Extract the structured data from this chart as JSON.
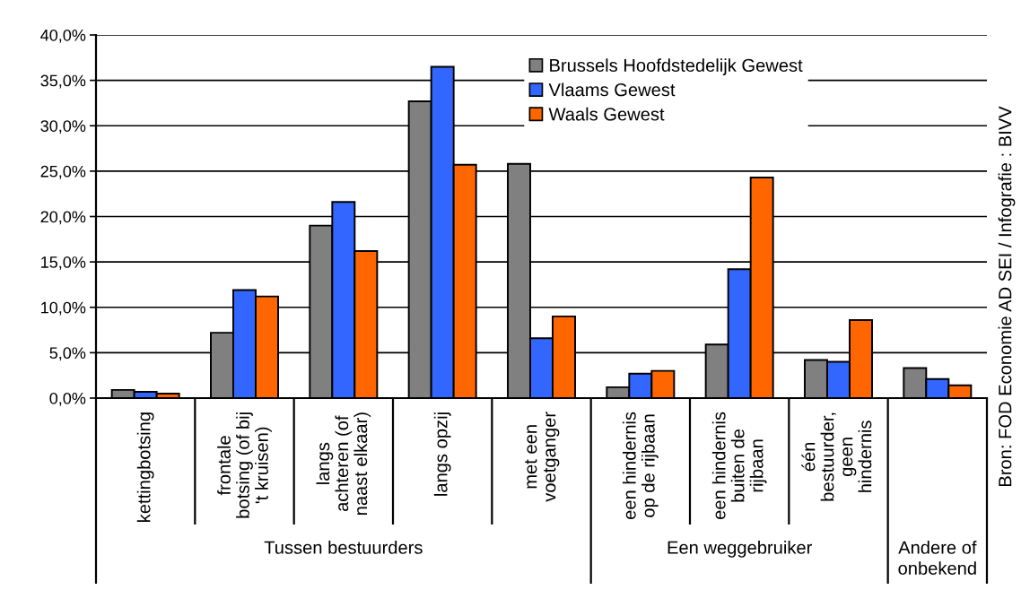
{
  "chart_data": {
    "type": "bar",
    "categories": [
      "kettingbotsing",
      "frontale\nbotsing (of bij\n't kruisen)",
      "langs\nachteren (of\nnaast elkaar)",
      "langs opzij",
      "met een\nvoetganger",
      "een hindernis\nop de rijbaan",
      "een hindernis\nbuiten de\nrijbaan",
      "één\nbestuurder,\ngeen\nhindernis",
      null
    ],
    "series": [
      {
        "name": "Brussels Hoofdstedelijk Gewest",
        "color": "#808080",
        "values": [
          0.9,
          7.2,
          19.0,
          32.7,
          25.8,
          1.2,
          5.9,
          4.2,
          3.3
        ]
      },
      {
        "name": "Vlaams Gewest",
        "color": "#3366ff",
        "values": [
          0.7,
          11.9,
          21.6,
          36.5,
          6.6,
          2.7,
          14.2,
          4.0,
          2.1
        ]
      },
      {
        "name": "Waals Gewest",
        "color": "#ff6600",
        "values": [
          0.5,
          11.2,
          16.2,
          25.7,
          9.0,
          3.0,
          24.3,
          8.6,
          1.4
        ]
      }
    ],
    "ylim": [
      0,
      40
    ],
    "yticks": [
      {
        "value": 0,
        "label": "0,0%"
      },
      {
        "value": 5,
        "label": "5,0%"
      },
      {
        "value": 10,
        "label": "10,0%"
      },
      {
        "value": 15,
        "label": "15,0%"
      },
      {
        "value": 20,
        "label": "20,0%"
      },
      {
        "value": 25,
        "label": "25,0%"
      },
      {
        "value": 30,
        "label": "30,0%"
      },
      {
        "value": 35,
        "label": "35,0%"
      },
      {
        "value": 40,
        "label": "40,0%"
      }
    ],
    "grid": "y",
    "legend": "top",
    "annotations": [
      "Tussen bestuurders",
      "Een weggebruiker",
      "Andere of\nonbekend",
      "Bron: FOD Economie AD SEI / Infografie : BIVV"
    ]
  }
}
